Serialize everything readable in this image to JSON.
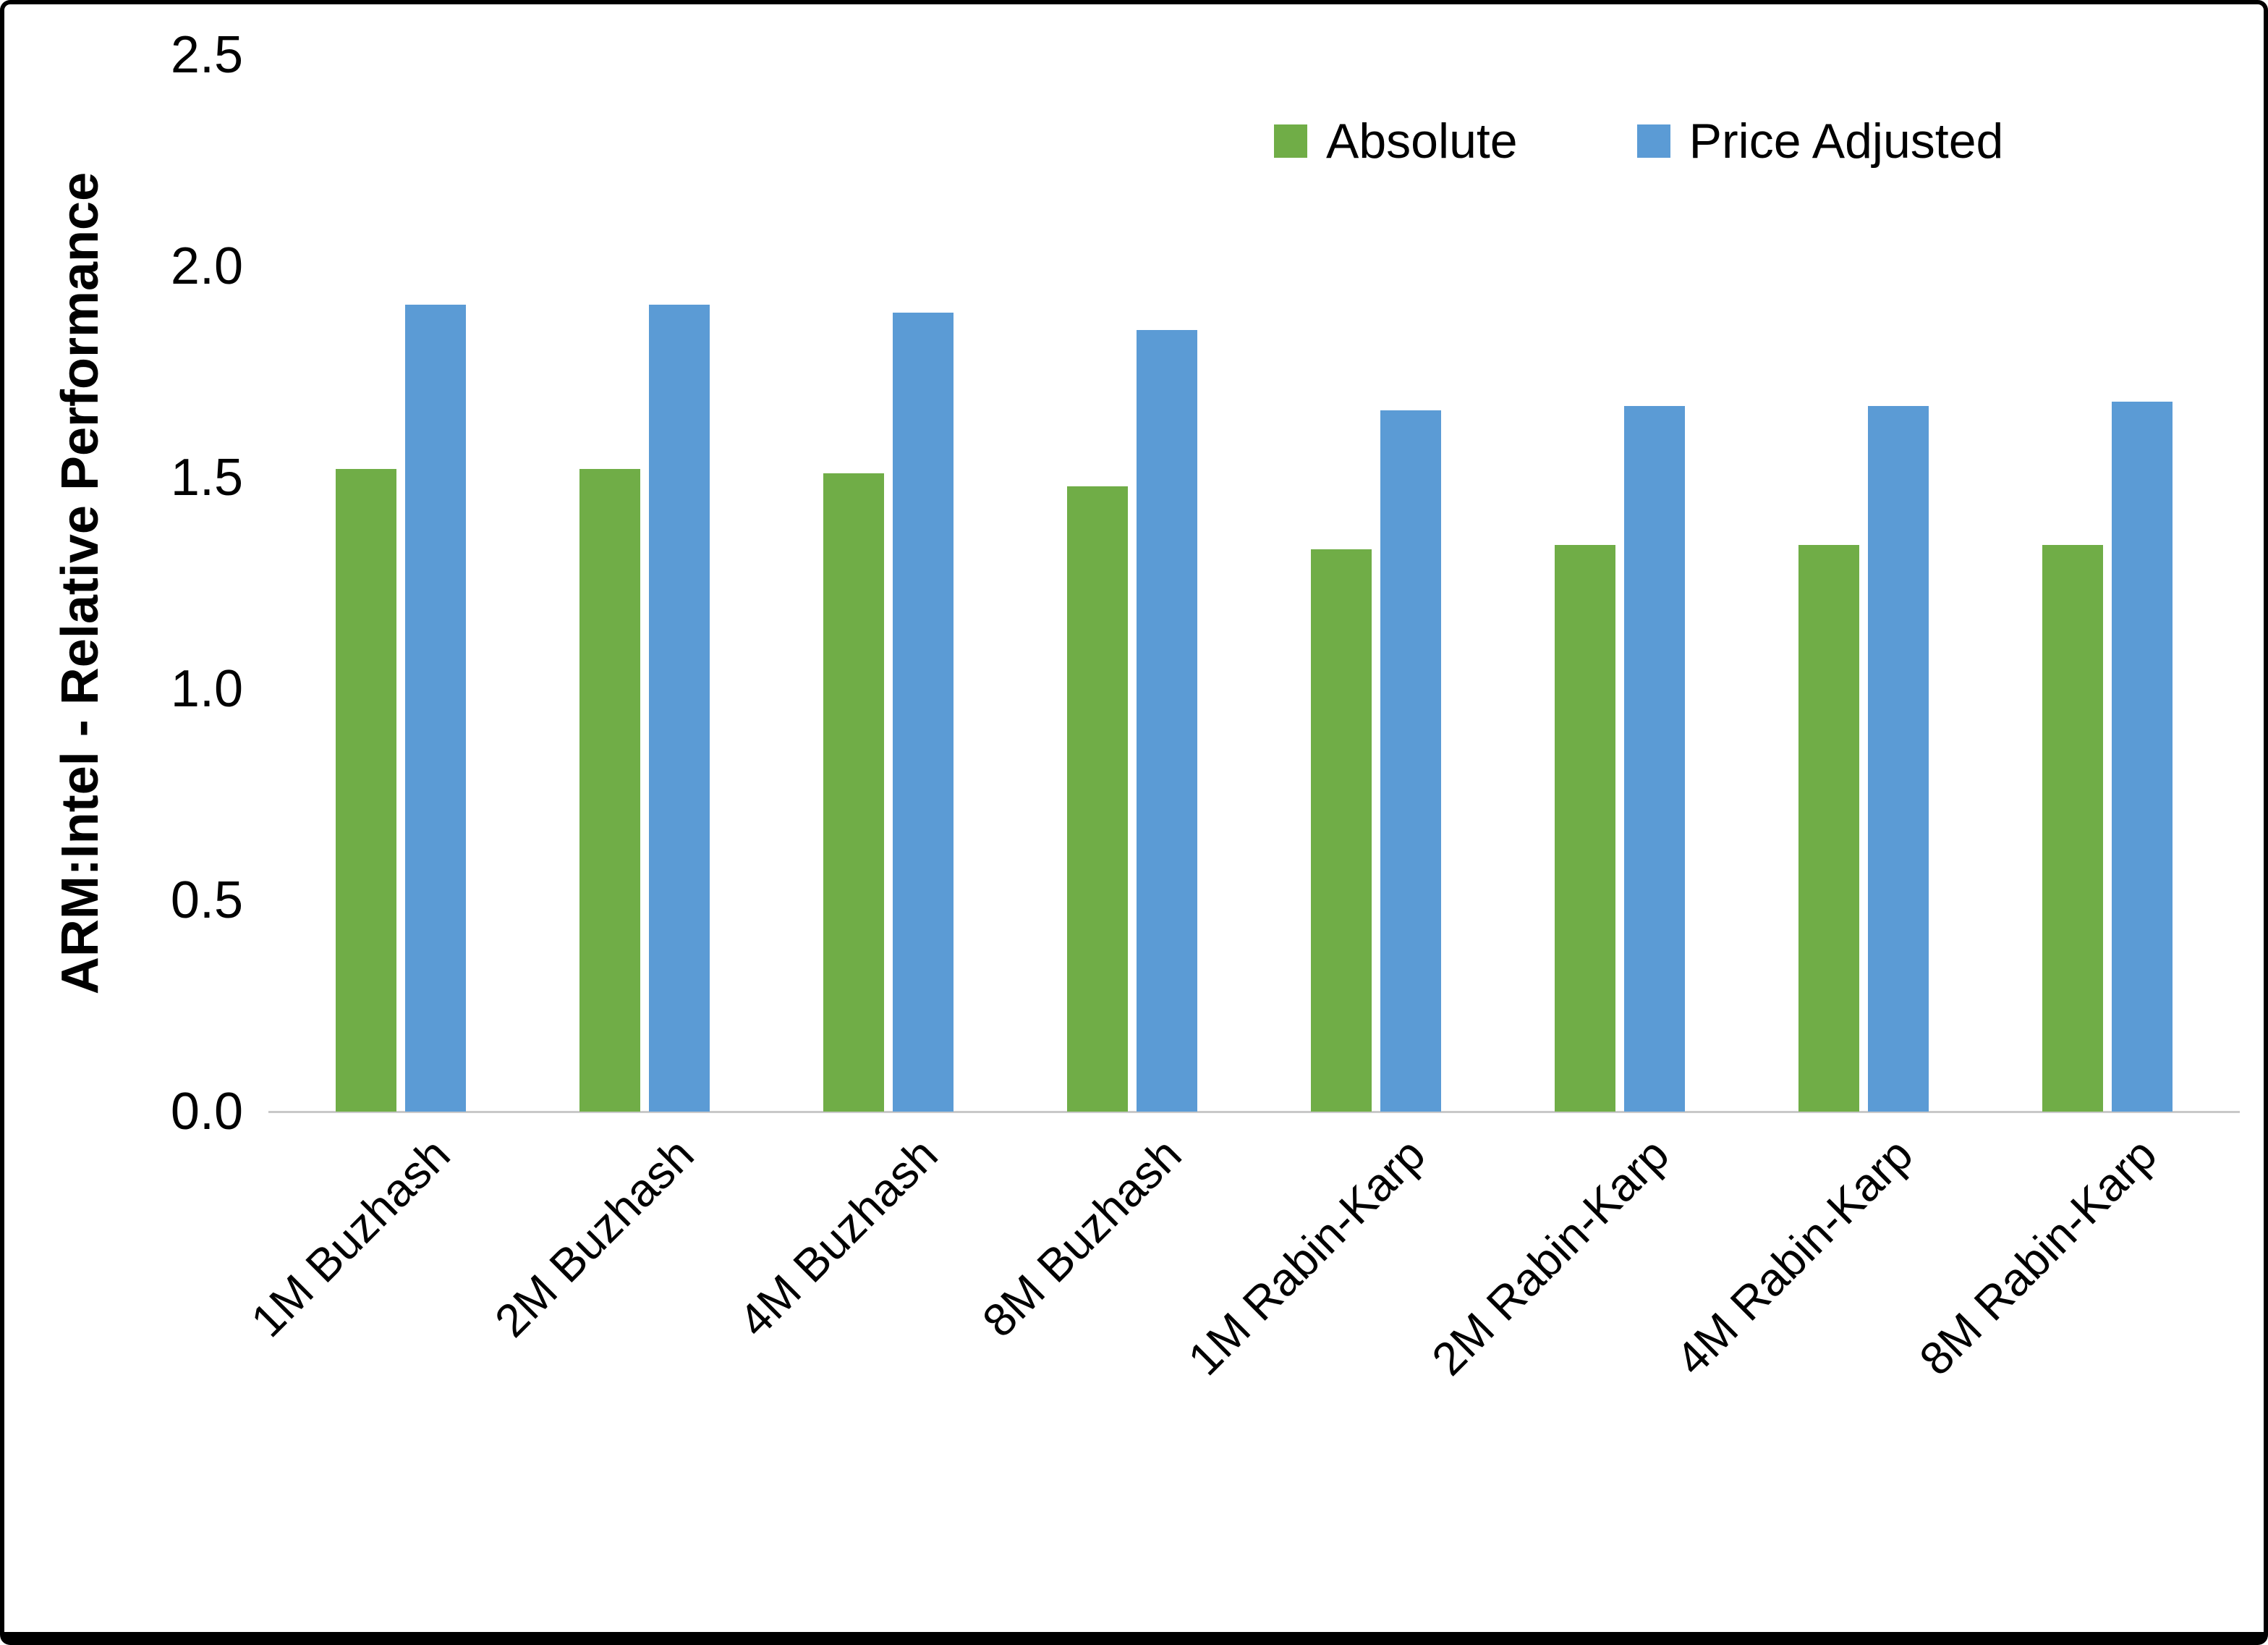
{
  "chart_data": {
    "type": "bar",
    "title": "",
    "xlabel": "",
    "ylabel": "ARM:Intel - Relative Performance",
    "categories": [
      "1M Buzhash",
      "2M Buzhash",
      "4M Buzhash",
      "8M Buzhash",
      "1M Rabin-Karp",
      "2M Rabin-Karp",
      "4M Rabin-Karp",
      "8M Rabin-Karp"
    ],
    "series": [
      {
        "name": "Absolute",
        "color": "#70AD47",
        "values": [
          1.52,
          1.52,
          1.51,
          1.48,
          1.33,
          1.34,
          1.34,
          1.34
        ]
      },
      {
        "name": "Price Adjusted",
        "color": "#5B9BD5",
        "values": [
          1.91,
          1.91,
          1.89,
          1.85,
          1.66,
          1.67,
          1.67,
          1.68
        ]
      }
    ],
    "ylim": [
      0,
      2.5
    ],
    "yticks": [
      0.0,
      0.5,
      1.0,
      1.5,
      2.0,
      2.5
    ],
    "ytick_labels": [
      "0.0",
      "0.5",
      "1.0",
      "1.5",
      "2.0",
      "2.5"
    ],
    "grid": false,
    "legend_position": "top-right",
    "axis_line_color": "#c9c9c9",
    "background_color": "#ffffff",
    "border_color": "#000000"
  }
}
